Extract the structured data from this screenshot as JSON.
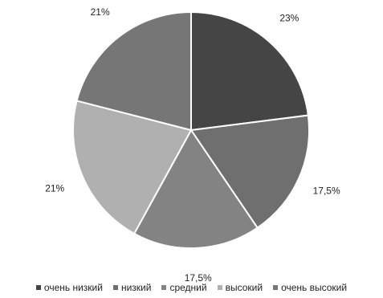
{
  "chart_data": {
    "type": "pie",
    "title": "",
    "legend_position": "bottom",
    "start_angle": "12 o'clock, clockwise",
    "slices": [
      {
        "label": "очень низкий",
        "value": 23,
        "value_label": "23%",
        "color": "#454545"
      },
      {
        "label": "низкий",
        "value": 17.5,
        "value_label": "17,5%",
        "color": "#6f6f6f"
      },
      {
        "label": "средний",
        "value": 17.5,
        "value_label": "17,5%",
        "color": "#838383"
      },
      {
        "label": "высокий",
        "value": 21,
        "value_label": "21%",
        "color": "#b0b0b0"
      },
      {
        "label": "очень высокий",
        "value": 21,
        "value_label": "21%",
        "color": "#767676"
      }
    ]
  }
}
